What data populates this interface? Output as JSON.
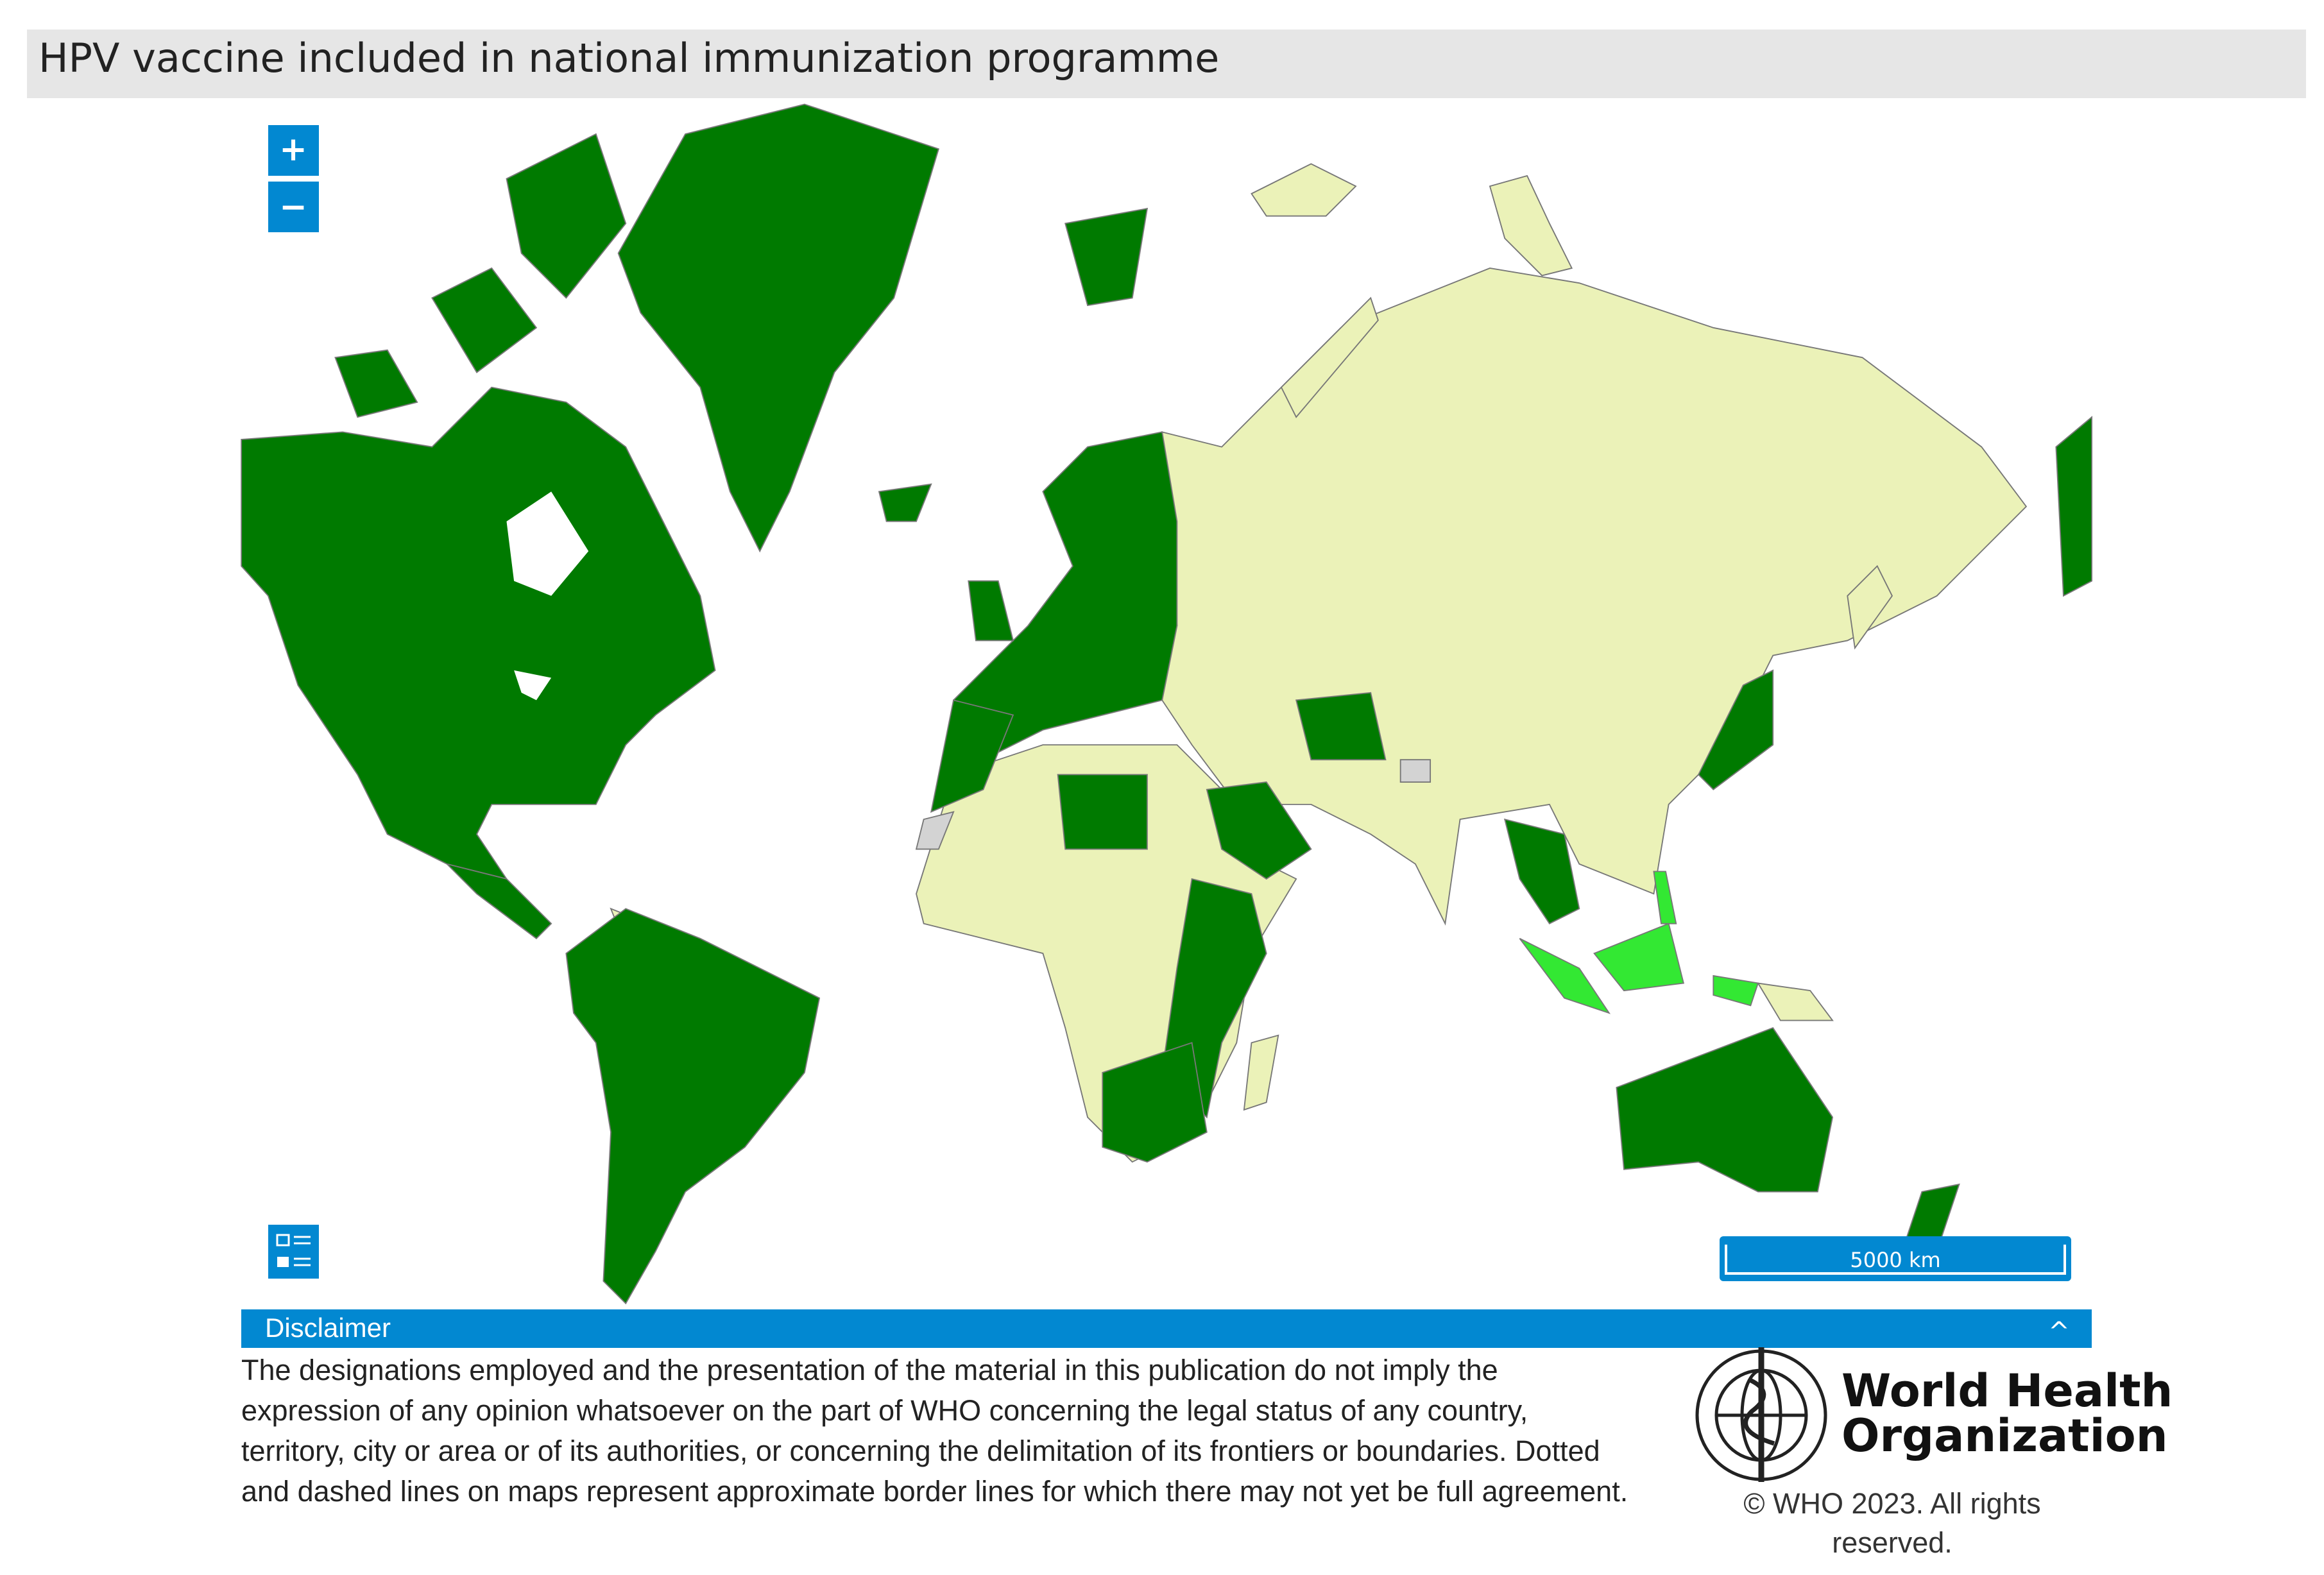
{
  "header": {
    "title": "HPV vaccine included in national immunization programme"
  },
  "map": {
    "zoom_in": "+",
    "zoom_out": "−",
    "scale_label": "5000 km"
  },
  "disclaimer": {
    "heading": "Disclaimer",
    "toggle": "^",
    "lines": [
      "The designations employed and the presentation of the material in this publication do not imply the",
      "expression of any opinion whatsoever on the part of WHO concerning the legal status of any country,",
      "territory, city or area or of its authorities, or concerning the delimitation of its frontiers or boundaries. Dotted",
      "and dashed lines on maps represent approximate border lines for which there may not yet be full agreement."
    ]
  },
  "logo": {
    "line1": "World Health",
    "line2": "Organization"
  },
  "footer": {
    "copyright_lines": [
      "© WHO 2023. All rights",
      "reserved."
    ]
  }
}
